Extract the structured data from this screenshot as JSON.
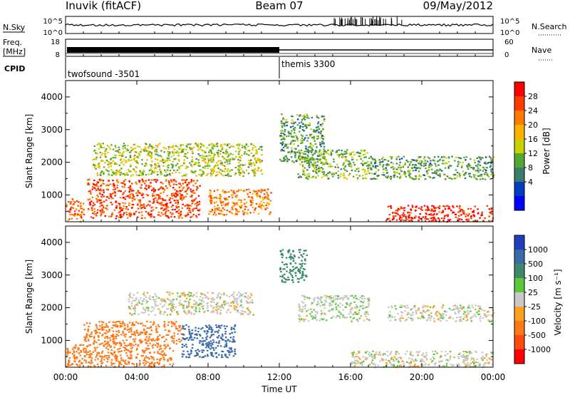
{
  "header": {
    "station": "Inuvik (fitACF)",
    "beam": "Beam 07",
    "date": "09/May/2012"
  },
  "strips": {
    "nsky": {
      "label": "N.Sky",
      "left_ticks": [
        "10^5",
        "10^0"
      ],
      "right_ticks": [
        "10^5",
        "10^0"
      ],
      "right_label": "N.Search"
    },
    "freq": {
      "label_line1": "Freq.",
      "label_line2": "[MHz]",
      "left_ticks": [
        "18",
        "8"
      ],
      "right_ticks": [
        "60",
        "0"
      ],
      "right_label": "Nave"
    },
    "cpid": {
      "label": "CPID",
      "programs": [
        {
          "name": "twofsound",
          "id": "-3501",
          "start_hour": 0,
          "text": "twofsound -3501"
        },
        {
          "name": "themis",
          "id": "3300",
          "start_hour": 12,
          "text": "themis 3300"
        }
      ]
    }
  },
  "axes": {
    "x_ticks": [
      "00:00",
      "04:00",
      "08:00",
      "12:00",
      "16:00",
      "20:00",
      "00:00"
    ],
    "x_label": "Time UT",
    "y_label": "Slant Range [km]",
    "y_ticks": [
      "1000",
      "2000",
      "3000",
      "4000"
    ]
  },
  "colorbars": {
    "power": {
      "label": "Power [dB]",
      "ticks": [
        "28",
        "24",
        "20",
        "16",
        "12",
        "8",
        "4"
      ],
      "colors": [
        "#ff0000",
        "#ff3a00",
        "#ff7a00",
        "#ffb000",
        "#c8d200",
        "#54a832",
        "#3c7c6c",
        "#0040c0",
        "#0000ff"
      ]
    },
    "velocity": {
      "label": "Velocity [m s⁻¹]",
      "ticks": [
        "1000",
        "500",
        "100",
        "25",
        "-25",
        "-100",
        "-500",
        "-1000"
      ],
      "colors": [
        "#1f3fbf",
        "#3a6aa8",
        "#3c8a6a",
        "#5cc83c",
        "#c8c8c8",
        "#ffa020",
        "#ff7818",
        "#ff4a10",
        "#ff0000"
      ]
    }
  },
  "chart_data": [
    {
      "type": "heatmap",
      "title": "Power",
      "x": {
        "label": "Time UT",
        "range_hours": [
          0,
          24
        ],
        "ticks": [
          "00:00",
          "04:00",
          "08:00",
          "12:00",
          "16:00",
          "20:00",
          "00:00"
        ]
      },
      "y": {
        "label": "Slant Range [km]",
        "range_km": [
          180,
          4500
        ],
        "ticks": [
          1000,
          2000,
          3000,
          4000
        ]
      },
      "colorbar": {
        "label": "Power [dB]",
        "range": [
          0,
          30
        ],
        "ticks": [
          4,
          8,
          12,
          16,
          20,
          24,
          28
        ]
      },
      "regions": [
        {
          "t0": 0.0,
          "t1": 1.0,
          "r0": 200,
          "r1": 900,
          "value": 24
        },
        {
          "t0": 1.2,
          "t1": 7.5,
          "r0": 300,
          "r1": 1500,
          "value": 26
        },
        {
          "t0": 1.5,
          "t1": 11.0,
          "r0": 1600,
          "r1": 2600,
          "value": 14
        },
        {
          "t0": 8.0,
          "t1": 11.5,
          "r0": 400,
          "r1": 1200,
          "value": 22
        },
        {
          "t0": 12.0,
          "t1": 14.5,
          "r0": 2000,
          "r1": 3500,
          "value": 10
        },
        {
          "t0": 13.0,
          "t1": 17.0,
          "r0": 1500,
          "r1": 2400,
          "value": 12
        },
        {
          "t0": 18.0,
          "t1": 24.0,
          "r0": 200,
          "r1": 700,
          "value": 28
        },
        {
          "t0": 17.0,
          "t1": 24.0,
          "r0": 1500,
          "r1": 2200,
          "value": 10
        }
      ]
    },
    {
      "type": "heatmap",
      "title": "Velocity",
      "x": {
        "label": "Time UT",
        "range_hours": [
          0,
          24
        ],
        "ticks": [
          "00:00",
          "04:00",
          "08:00",
          "12:00",
          "16:00",
          "20:00",
          "00:00"
        ]
      },
      "y": {
        "label": "Slant Range [km]",
        "range_km": [
          180,
          4500
        ],
        "ticks": [
          1000,
          2000,
          3000,
          4000
        ]
      },
      "colorbar": {
        "label": "Velocity [m s⁻¹]",
        "ticks": [
          1000,
          500,
          100,
          25,
          -25,
          -100,
          -500,
          -1000
        ]
      },
      "regions": [
        {
          "t0": 0.0,
          "t1": 6.0,
          "r0": 200,
          "r1": 900,
          "value": -150
        },
        {
          "t0": 1.0,
          "t1": 6.5,
          "r0": 900,
          "r1": 1600,
          "value": -300
        },
        {
          "t0": 3.5,
          "t1": 10.5,
          "r0": 1800,
          "r1": 2500,
          "value": 0
        },
        {
          "t0": 6.5,
          "t1": 9.5,
          "r0": 500,
          "r1": 1500,
          "value": 600
        },
        {
          "t0": 12.0,
          "t1": 13.5,
          "r0": 2800,
          "r1": 3800,
          "value": 200
        },
        {
          "t0": 13.0,
          "t1": 17.0,
          "r0": 1600,
          "r1": 2400,
          "value": 10
        },
        {
          "t0": 16.0,
          "t1": 24.0,
          "r0": 200,
          "r1": 700,
          "value": 0
        },
        {
          "t0": 18.0,
          "t1": 24.0,
          "r0": 1600,
          "r1": 2100,
          "value": 0
        }
      ]
    }
  ]
}
